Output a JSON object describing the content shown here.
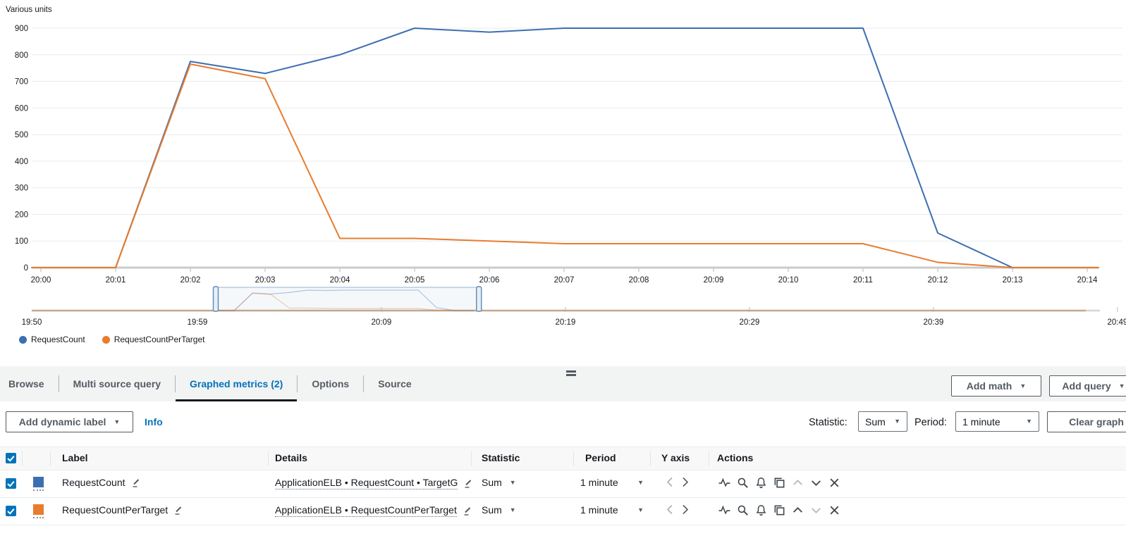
{
  "chart_data": {
    "type": "line",
    "unit_label": "Various units",
    "xlabel": "",
    "x": [
      "20:00",
      "20:01",
      "20:02",
      "20:03",
      "20:04",
      "20:05",
      "20:06",
      "20:07",
      "20:08",
      "20:09",
      "20:10",
      "20:11",
      "20:12",
      "20:13",
      "20:14"
    ],
    "series": [
      {
        "name": "RequestCount",
        "color": "#3c6fb1",
        "values": [
          0,
          0,
          775,
          730,
          800,
          900,
          885,
          900,
          900,
          900,
          900,
          900,
          130,
          0,
          0
        ]
      },
      {
        "name": "RequestCountPerTarget",
        "color": "#e87c2e",
        "values": [
          0,
          0,
          765,
          710,
          110,
          110,
          100,
          90,
          90,
          90,
          90,
          90,
          20,
          0,
          0
        ]
      }
    ],
    "ylim": [
      0,
      900
    ],
    "y_ticks": [
      0,
      100,
      200,
      300,
      400,
      500,
      600,
      700,
      800,
      900
    ],
    "grid": true,
    "legend_position": "bottom-left",
    "timeline": {
      "labels": [
        "19:50",
        "19:59",
        "20:09",
        "20:19",
        "20:29",
        "20:39",
        "20:49"
      ],
      "minutes": [
        0,
        9,
        19,
        29,
        39,
        49,
        59
      ],
      "selection_minutes": [
        10,
        24.3
      ]
    }
  },
  "tabs": [
    "Browse",
    "Multi source query",
    "Graphed metrics (2)",
    "Options",
    "Source"
  ],
  "active_tab": "Graphed metrics (2)",
  "header_buttons": {
    "add_math": "Add math",
    "add_query": "Add query"
  },
  "toolbar": {
    "add_dynamic_label": "Add dynamic label",
    "info": "Info",
    "statistic_label": "Statistic:",
    "statistic_value": "Sum",
    "period_label": "Period:",
    "period_value": "1 minute",
    "clear_graph": "Clear graph"
  },
  "table": {
    "headers": [
      "Label",
      "Details",
      "Statistic",
      "Period",
      "Y axis",
      "Actions"
    ],
    "rows": [
      {
        "selected": true,
        "color": "#3c6fb1",
        "label": "RequestCount",
        "details": "ApplicationELB • RequestCount • TargetG",
        "statistic": "Sum",
        "period": "1 minute"
      },
      {
        "selected": true,
        "color": "#e87c2e",
        "label": "RequestCountPerTarget",
        "details": "ApplicationELB • RequestCountPerTarget",
        "statistic": "Sum",
        "period": "1 minute"
      }
    ],
    "action_icons": [
      "pulse-icon",
      "zoom-icon",
      "alarm-bell-icon",
      "duplicate-icon",
      "move-up-icon",
      "move-down-icon",
      "remove-icon"
    ]
  },
  "colors": {
    "accent": "#0073bb",
    "active_tab_underline": "#16191f"
  }
}
